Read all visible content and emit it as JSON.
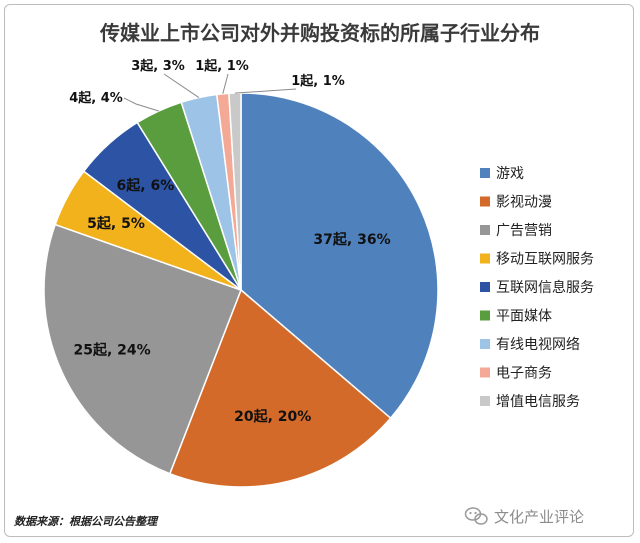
{
  "chart_data": {
    "type": "pie",
    "title": "传媒业上市公司对外并购投资标的所属子行业分布",
    "slices": [
      {
        "name": "游戏",
        "count": 37,
        "percent": 36,
        "label": "37起, 36%",
        "color": "#4f81bd"
      },
      {
        "name": "影视动漫",
        "count": 20,
        "percent": 20,
        "label": "20起, 20%",
        "color": "#d46a29"
      },
      {
        "name": "广告营销",
        "count": 25,
        "percent": 24,
        "label": "25起, 24%",
        "color": "#969696"
      },
      {
        "name": "移动互联网服务",
        "count": 5,
        "percent": 5,
        "label": "5起, 5%",
        "color": "#f2b21c"
      },
      {
        "name": "互联网信息服务",
        "count": 6,
        "percent": 6,
        "label": "6起, 6%",
        "color": "#2d54a4"
      },
      {
        "name": "平面媒体",
        "count": 4,
        "percent": 4,
        "label": "4起, 4%",
        "color": "#5a9d3e"
      },
      {
        "name": "有线电视网络",
        "count": 3,
        "percent": 3,
        "label": "3起, 3%",
        "color": "#9dc3e6"
      },
      {
        "name": "电子商务",
        "count": 1,
        "percent": 1,
        "label": "1起, 1%",
        "color": "#f4a896"
      },
      {
        "name": "增值电信服务",
        "count": 1,
        "percent": 1,
        "label": "1起, 1%",
        "color": "#c9c9c9"
      }
    ],
    "legend_position": "right"
  },
  "source_note": "数据来源：根据公司公告整理",
  "watermark": "文化产业评论",
  "icons": {
    "watermark": "wechat-icon"
  }
}
